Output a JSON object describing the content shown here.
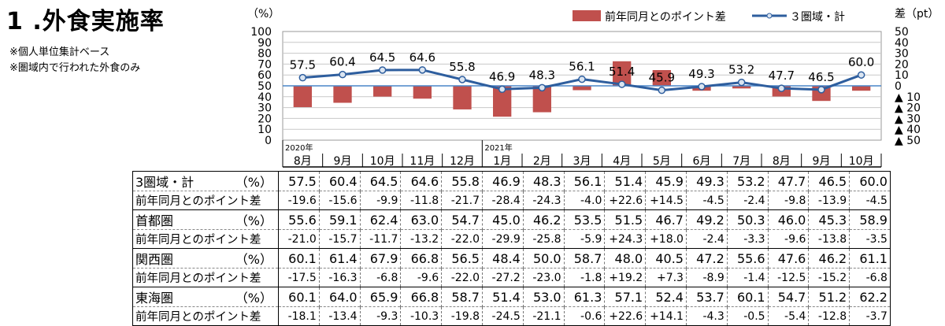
{
  "page": {
    "title": "1 .外食実施率",
    "notes": [
      "※個人単位集計ベース",
      "※圏域内で行われた外食のみ"
    ]
  },
  "chart_data": {
    "type": "bar+line",
    "categories": [
      "8月",
      "9月",
      "10月",
      "11月",
      "12月",
      "1月",
      "2月",
      "3月",
      "4月",
      "5月",
      "6月",
      "7月",
      "8月",
      "9月",
      "10月"
    ],
    "year_labels": [
      {
        "index": 0,
        "label": "2020年"
      },
      {
        "index": 5,
        "label": "2021年"
      }
    ],
    "left_axis": {
      "unit": "（%）",
      "ticks": [
        "100",
        "90",
        "80",
        "70",
        "60",
        "50",
        "40",
        "30",
        "20",
        "10",
        "0"
      ],
      "ylim": [
        0,
        100
      ]
    },
    "right_axis": {
      "unit": "差（pt）",
      "ticks": [
        "50",
        "40",
        "30",
        "20",
        "10",
        "0",
        "▲ 10",
        "▲ 20",
        "▲ 30",
        "▲ 40",
        "▲ 50"
      ],
      "ylim": [
        -50,
        50
      ]
    },
    "legend": {
      "bar": "前年同月とのポイント差",
      "line": "３圏域・計"
    },
    "series": [
      {
        "name": "３圏域・計",
        "type": "line",
        "axis": "left",
        "values": [
          57.5,
          60.4,
          64.5,
          64.6,
          55.8,
          46.9,
          48.3,
          56.1,
          51.4,
          45.9,
          49.3,
          53.2,
          47.7,
          46.5,
          60.0
        ]
      },
      {
        "name": "前年同月とのポイント差",
        "type": "bar",
        "axis": "right",
        "values": [
          -19.6,
          -15.6,
          -9.9,
          -11.8,
          -21.7,
          -28.4,
          -24.3,
          -4.0,
          22.6,
          14.5,
          -4.5,
          -2.4,
          -9.8,
          -13.9,
          -4.5
        ]
      }
    ],
    "colors": {
      "bar": "#c0504d",
      "line": "#2e5e9e",
      "marker_fill": "#dbe5f1",
      "zero_line": "#4a86c8"
    },
    "grid": true
  },
  "table": {
    "rows": [
      {
        "label": "3圏域・計",
        "unit": "（%）",
        "values": [
          "57.5",
          "60.4",
          "64.5",
          "64.6",
          "55.8",
          "46.9",
          "48.3",
          "56.1",
          "51.4",
          "45.9",
          "49.3",
          "53.2",
          "47.7",
          "46.5",
          "60.0"
        ]
      },
      {
        "label": "前年同月とのポイント差",
        "unit": "",
        "values": [
          "-19.6",
          "-15.6",
          "-9.9",
          "-11.8",
          "-21.7",
          "-28.4",
          "-24.3",
          "-4.0",
          "+22.6",
          "+14.5",
          "-4.5",
          "-2.4",
          "-9.8",
          "-13.9",
          "-4.5"
        ]
      },
      {
        "label": "首都圏",
        "unit": "（%）",
        "values": [
          "55.6",
          "59.1",
          "62.4",
          "63.0",
          "54.7",
          "45.0",
          "46.2",
          "53.5",
          "51.5",
          "46.7",
          "49.2",
          "50.3",
          "46.0",
          "45.3",
          "58.9"
        ]
      },
      {
        "label": "前年同月とのポイント差",
        "unit": "",
        "values": [
          "-21.0",
          "-15.7",
          "-11.7",
          "-13.2",
          "-22.0",
          "-29.9",
          "-25.8",
          "-5.9",
          "+24.3",
          "+18.0",
          "-2.4",
          "-3.3",
          "-9.6",
          "-13.8",
          "-3.5"
        ]
      },
      {
        "label": "関西圏",
        "unit": "（%）",
        "values": [
          "60.1",
          "61.4",
          "67.9",
          "66.8",
          "56.5",
          "48.4",
          "50.0",
          "58.7",
          "48.0",
          "40.5",
          "47.2",
          "55.6",
          "47.6",
          "46.2",
          "61.1"
        ]
      },
      {
        "label": "前年同月とのポイント差",
        "unit": "",
        "values": [
          "-17.5",
          "-16.3",
          "-6.8",
          "-9.6",
          "-22.0",
          "-27.2",
          "-23.0",
          "-1.8",
          "+19.2",
          "+7.3",
          "-8.9",
          "-1.4",
          "-12.5",
          "-15.2",
          "-6.8"
        ]
      },
      {
        "label": "東海圏",
        "unit": "（%）",
        "values": [
          "60.1",
          "64.0",
          "65.9",
          "66.8",
          "58.7",
          "51.4",
          "53.0",
          "61.3",
          "57.1",
          "52.4",
          "53.7",
          "60.1",
          "54.7",
          "51.2",
          "62.2"
        ]
      },
      {
        "label": "前年同月とのポイント差",
        "unit": "",
        "values": [
          "-18.1",
          "-13.4",
          "-9.3",
          "-10.3",
          "-19.8",
          "-24.5",
          "-21.1",
          "-0.6",
          "+22.6",
          "+14.1",
          "-4.3",
          "-0.5",
          "-5.4",
          "-12.8",
          "-3.7"
        ]
      }
    ]
  }
}
